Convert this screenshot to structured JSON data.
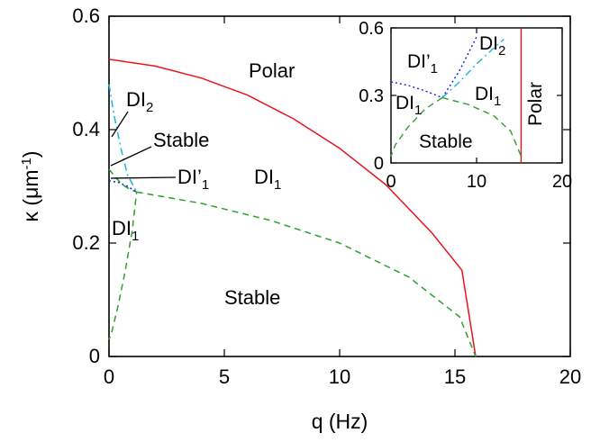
{
  "chart_data": [
    {
      "panel": "main",
      "type": "line",
      "xlabel": "q (Hz)",
      "ylabel": "κ (μm⁻¹)",
      "xlim": [
        0,
        20
      ],
      "ylim": [
        0,
        0.6
      ],
      "xticks": [
        "0",
        "5",
        "10",
        "15",
        "20"
      ],
      "yticks": [
        "0",
        "0.2",
        "0.4",
        "0.6"
      ],
      "grid": false,
      "series": [
        {
          "style": "solid",
          "color": "#e8131b",
          "x": [
            0,
            2,
            4,
            6,
            8,
            10,
            12,
            14,
            15.3,
            15.9
          ],
          "y": [
            0.524,
            0.512,
            0.491,
            0.461,
            0.419,
            0.367,
            0.303,
            0.218,
            0.152,
            0.0
          ]
        },
        {
          "style": "dashed",
          "color": "#2ca02c",
          "x": [
            0,
            0.3,
            0.6,
            0.9,
            1.2,
            1.0,
            0.7,
            0.4,
            0.1,
            0.0
          ],
          "y": [
            0.33,
            0.315,
            0.302,
            0.295,
            0.29,
            0.22,
            0.15,
            0.09,
            0.04,
            0.03
          ]
        },
        {
          "style": "dashed",
          "color": "#2ca02c",
          "x": [
            1.2,
            4,
            7,
            10,
            13,
            15.2,
            15.9
          ],
          "y": [
            0.29,
            0.27,
            0.24,
            0.2,
            0.14,
            0.07,
            0.0
          ]
        },
        {
          "style": "dotted",
          "color": "#1a1adb",
          "x": [
            0,
            0.4,
            0.8,
            1.2
          ],
          "y": [
            0.31,
            0.307,
            0.3,
            0.29
          ]
        },
        {
          "style": "dash-dot",
          "color": "#19b7d6",
          "x": [
            0,
            0.2,
            0.5,
            0.8,
            1.2
          ],
          "y": [
            0.48,
            0.43,
            0.37,
            0.32,
            0.29
          ]
        }
      ],
      "annotations": {
        "polar": "Polar",
        "dl2": "DI",
        "dl2_sub": "2",
        "stable_small": "Stable",
        "dlp1": "DI’",
        "dlp1_sub": "1",
        "dl1_mid": "DI",
        "dl1_mid_sub": "1",
        "dl1_left": "DI",
        "dl1_left_sub": "1",
        "stable_large": "Stable"
      }
    },
    {
      "panel": "inset",
      "type": "line",
      "xlim": [
        0,
        20
      ],
      "ylim": [
        0,
        0.6
      ],
      "xticks": [
        "0",
        "10",
        "20"
      ],
      "yticks": [
        "0",
        "0.3",
        "0.6"
      ],
      "grid": false,
      "series": [
        {
          "style": "solid",
          "color": "#e8131b",
          "x": [
            15.2,
            15.2
          ],
          "y": [
            0.0,
            0.6
          ]
        },
        {
          "style": "dashed",
          "color": "#2ca02c",
          "x": [
            6,
            4,
            2,
            0.5,
            0.0
          ],
          "y": [
            0.29,
            0.24,
            0.16,
            0.08,
            0.03
          ]
        },
        {
          "style": "dashed",
          "color": "#2ca02c",
          "x": [
            6,
            9,
            12,
            14,
            15.2
          ],
          "y": [
            0.29,
            0.26,
            0.21,
            0.14,
            0.03
          ]
        },
        {
          "style": "dotted",
          "color": "#1a1adb",
          "x": [
            0,
            2,
            4,
            6,
            8,
            10
          ],
          "y": [
            0.36,
            0.345,
            0.32,
            0.29,
            0.41,
            0.56
          ]
        },
        {
          "style": "dash-dot",
          "color": "#19b7d6",
          "x": [
            6,
            8,
            10,
            12,
            13.2
          ],
          "y": [
            0.29,
            0.36,
            0.44,
            0.51,
            0.55
          ]
        }
      ],
      "annotations": {
        "dlp1": "DI’",
        "dlp1_sub": "1",
        "dl2": "DI",
        "dl2_sub": "2",
        "dl1_left": "DI",
        "dl1_left_sub": "1",
        "dl1_right": "DI",
        "dl1_right_sub": "1",
        "stable": "Stable",
        "polar": "Polar"
      }
    }
  ]
}
